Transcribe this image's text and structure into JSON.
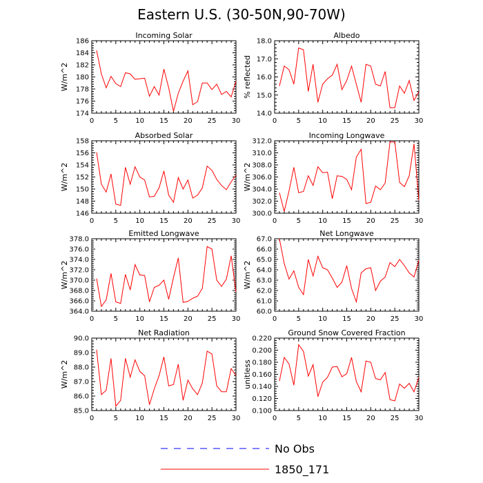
{
  "title": "Eastern U.S. (30-50N,90-70W)",
  "legend": [
    {
      "label": "No Obs",
      "color": "#0000ff",
      "dashed": true
    },
    {
      "label": "1850_171",
      "color": "#ff0000",
      "dashed": false
    }
  ],
  "chart_data": [
    {
      "type": "line",
      "title": "Incoming Solar",
      "ylabel": "W/m^2",
      "xlim": [
        0,
        30
      ],
      "xticks": [
        "0",
        "5",
        "10",
        "15",
        "20",
        "25",
        "30"
      ],
      "ylim": [
        174,
        186
      ],
      "yticks": [
        "174",
        "176",
        "178",
        "180",
        "182",
        "184",
        "186"
      ],
      "x": [
        1,
        2,
        3,
        4,
        5,
        6,
        7,
        8,
        9,
        10,
        11,
        12,
        13,
        14,
        15,
        16,
        17,
        18,
        19,
        20,
        21,
        22,
        23,
        24,
        25,
        26,
        27,
        28,
        29,
        30
      ],
      "series": [
        {
          "name": "1850_171",
          "values": [
            184.4,
            180.5,
            178.2,
            180.1,
            178.9,
            178.4,
            180.7,
            180.5,
            179.6,
            179.7,
            179.8,
            176.8,
            178.4,
            177.0,
            181.3,
            178.2,
            174.3,
            177.3,
            179.3,
            181.0,
            175.4,
            175.9,
            179.0,
            179.0,
            177.9,
            178.8,
            177.1,
            177.6,
            176.7,
            179.3
          ]
        }
      ]
    },
    {
      "type": "line",
      "title": "Albedo",
      "ylabel": "% reflected",
      "xlim": [
        0,
        30
      ],
      "xticks": [
        "0",
        "5",
        "10",
        "15",
        "20",
        "25",
        "30"
      ],
      "ylim": [
        14,
        18
      ],
      "yticks": [
        "14.0",
        "15.0",
        "16.0",
        "17.0",
        "18.0"
      ],
      "x": [
        1,
        2,
        3,
        4,
        5,
        6,
        7,
        8,
        9,
        10,
        11,
        12,
        13,
        14,
        15,
        16,
        17,
        18,
        19,
        20,
        21,
        22,
        23,
        24,
        25,
        26,
        27,
        28,
        29,
        30
      ],
      "series": [
        {
          "name": "1850_171",
          "values": [
            15.5,
            16.6,
            16.4,
            15.6,
            17.6,
            17.5,
            15.2,
            16.7,
            14.6,
            15.6,
            15.9,
            16.1,
            16.7,
            15.3,
            15.8,
            16.6,
            15.6,
            14.6,
            16.7,
            16.6,
            15.6,
            15.5,
            16.3,
            14.3,
            14.3,
            15.5,
            15.1,
            15.8,
            14.7,
            15.2
          ]
        }
      ]
    },
    {
      "type": "line",
      "title": "Absorbed Solar",
      "ylabel": "W/m^2",
      "xlim": [
        0,
        30
      ],
      "xticks": [
        "0",
        "5",
        "10",
        "15",
        "20",
        "25",
        "30"
      ],
      "ylim": [
        146,
        158
      ],
      "yticks": [
        "146",
        "148",
        "150",
        "152",
        "154",
        "156",
        "158"
      ],
      "x": [
        1,
        2,
        3,
        4,
        5,
        6,
        7,
        8,
        9,
        10,
        11,
        12,
        13,
        14,
        15,
        16,
        17,
        18,
        19,
        20,
        21,
        22,
        23,
        24,
        25,
        26,
        27,
        28,
        29,
        30
      ],
      "series": [
        {
          "name": "1850_171",
          "values": [
            156.1,
            150.8,
            149.5,
            152.5,
            147.5,
            147.3,
            153.6,
            150.8,
            153.7,
            152.0,
            151.5,
            148.7,
            148.8,
            150.2,
            153.0,
            149.0,
            147.8,
            151.9,
            150.0,
            151.5,
            148.5,
            149.0,
            150.2,
            153.8,
            153.1,
            151.6,
            150.6,
            149.9,
            151.2,
            152.3
          ]
        }
      ]
    },
    {
      "type": "line",
      "title": "Incoming Longwave",
      "ylabel": "W/m^2",
      "xlim": [
        0,
        30
      ],
      "xticks": [
        "0",
        "5",
        "10",
        "15",
        "20",
        "25",
        "30"
      ],
      "ylim": [
        300,
        312
      ],
      "yticks": [
        "300.0",
        "302.0",
        "304.0",
        "306.0",
        "308.0",
        "310.0",
        "312.0"
      ],
      "x": [
        1,
        2,
        3,
        4,
        5,
        6,
        7,
        8,
        9,
        10,
        11,
        12,
        13,
        14,
        15,
        16,
        17,
        18,
        19,
        20,
        21,
        22,
        23,
        24,
        25,
        26,
        27,
        28,
        29,
        30
      ],
      "series": [
        {
          "name": "1850_171",
          "values": [
            303.4,
            300.3,
            303.7,
            307.6,
            303.4,
            303.6,
            306.2,
            304.6,
            307.7,
            306.7,
            306.8,
            302.4,
            306.2,
            306.1,
            305.6,
            303.9,
            309.3,
            310.6,
            301.6,
            301.8,
            304.5,
            303.9,
            305.0,
            311.8,
            311.8,
            305.1,
            304.4,
            306.2,
            311.5,
            302.1
          ]
        }
      ]
    },
    {
      "type": "line",
      "title": "Emitted Longwave",
      "ylabel": "W/m^2",
      "xlim": [
        0,
        30
      ],
      "xticks": [
        "0",
        "5",
        "10",
        "15",
        "20",
        "25",
        "30"
      ],
      "ylim": [
        364,
        378
      ],
      "yticks": [
        "364.0",
        "366.0",
        "368.0",
        "370.0",
        "372.0",
        "374.0",
        "376.0",
        "378.0"
      ],
      "x": [
        1,
        2,
        3,
        4,
        5,
        6,
        7,
        8,
        9,
        10,
        11,
        12,
        13,
        14,
        15,
        16,
        17,
        18,
        19,
        20,
        21,
        22,
        23,
        24,
        25,
        26,
        27,
        28,
        29,
        30
      ],
      "series": [
        {
          "name": "1850_171",
          "values": [
            370.3,
            364.9,
            366.2,
            371.3,
            365.8,
            365.5,
            371.1,
            368.1,
            373.0,
            371.0,
            370.9,
            365.8,
            368.6,
            369.0,
            370.0,
            366.3,
            370.5,
            374.3,
            365.7,
            365.9,
            366.5,
            366.9,
            368.4,
            376.5,
            376.0,
            370.0,
            368.8,
            370.2,
            374.7,
            367.7
          ]
        }
      ]
    },
    {
      "type": "line",
      "title": "Net Longwave",
      "ylabel": "W/m^2",
      "xlim": [
        0,
        30
      ],
      "xticks": [
        "0",
        "5",
        "10",
        "15",
        "20",
        "25",
        "30"
      ],
      "ylim": [
        60,
        67
      ],
      "yticks": [
        "60.0",
        "61.0",
        "62.0",
        "63.0",
        "64.0",
        "65.0",
        "66.0",
        "67.0"
      ],
      "x": [
        1,
        2,
        3,
        4,
        5,
        6,
        7,
        8,
        9,
        10,
        11,
        12,
        13,
        14,
        15,
        16,
        17,
        18,
        19,
        20,
        21,
        22,
        23,
        24,
        25,
        26,
        27,
        28,
        29,
        30
      ],
      "series": [
        {
          "name": "1850_171",
          "values": [
            67.0,
            64.6,
            63.1,
            63.9,
            62.3,
            61.6,
            65.0,
            63.4,
            65.3,
            64.2,
            64.0,
            63.2,
            62.3,
            62.8,
            64.4,
            62.2,
            60.9,
            63.7,
            64.1,
            64.2,
            62.0,
            62.9,
            63.3,
            64.7,
            64.3,
            65.0,
            64.4,
            63.7,
            63.3,
            64.9
          ]
        }
      ]
    },
    {
      "type": "line",
      "title": "Net Radiation",
      "ylabel": "W/m^2",
      "xlim": [
        0,
        30
      ],
      "xticks": [
        "0",
        "5",
        "10",
        "15",
        "20",
        "25",
        "30"
      ],
      "ylim": [
        85,
        90
      ],
      "yticks": [
        "85.0",
        "86.0",
        "87.0",
        "88.0",
        "89.0",
        "90.0"
      ],
      "x": [
        1,
        2,
        3,
        4,
        5,
        6,
        7,
        8,
        9,
        10,
        11,
        12,
        13,
        14,
        15,
        16,
        17,
        18,
        19,
        20,
        21,
        22,
        23,
        24,
        25,
        26,
        27,
        28,
        29,
        30
      ],
      "series": [
        {
          "name": "1850_171",
          "values": [
            89.2,
            86.1,
            86.4,
            88.6,
            85.3,
            85.7,
            88.6,
            87.3,
            88.5,
            87.7,
            87.4,
            85.4,
            86.5,
            87.4,
            88.7,
            86.7,
            86.8,
            88.2,
            85.7,
            87.1,
            86.5,
            86.1,
            86.9,
            89.1,
            88.9,
            86.7,
            86.3,
            86.3,
            87.9,
            87.4
          ]
        }
      ]
    },
    {
      "type": "line",
      "title": "Ground Snow Covered Fraction",
      "ylabel": "unitless",
      "xlim": [
        0,
        30
      ],
      "xticks": [
        "0",
        "5",
        "10",
        "15",
        "20",
        "25",
        "30"
      ],
      "ylim": [
        0.1,
        0.22
      ],
      "yticks": [
        "0.100",
        "0.120",
        "0.140",
        "0.160",
        "0.180",
        "0.200",
        "0.220"
      ],
      "x": [
        1,
        2,
        3,
        4,
        5,
        6,
        7,
        8,
        9,
        10,
        11,
        12,
        13,
        14,
        15,
        16,
        17,
        18,
        19,
        20,
        21,
        22,
        23,
        24,
        25,
        26,
        27,
        28,
        29,
        30
      ],
      "series": [
        {
          "name": "1850_171",
          "values": [
            0.149,
            0.188,
            0.177,
            0.142,
            0.209,
            0.198,
            0.157,
            0.176,
            0.123,
            0.147,
            0.155,
            0.172,
            0.173,
            0.156,
            0.161,
            0.188,
            0.148,
            0.131,
            0.182,
            0.18,
            0.153,
            0.151,
            0.163,
            0.118,
            0.116,
            0.144,
            0.137,
            0.145,
            0.131,
            0.155
          ]
        }
      ]
    }
  ]
}
